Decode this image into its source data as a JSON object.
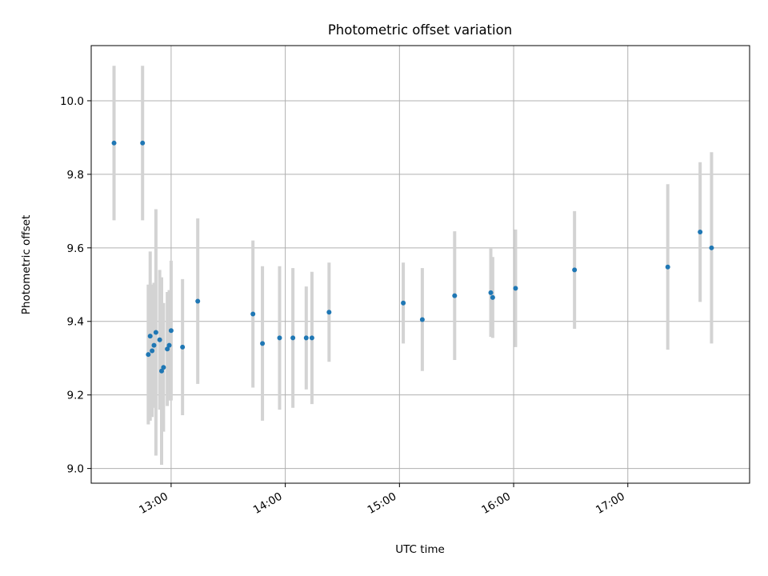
{
  "chart_data": {
    "type": "scatter",
    "title": "Photometric offset variation",
    "xlabel": "UTC time",
    "ylabel": "Photometric offset",
    "grid": true,
    "x_unit": "UTC hh:mm",
    "xlim": [
      "12:18",
      "18:04"
    ],
    "ylim": [
      8.96,
      10.15
    ],
    "xticks": [
      "13:00",
      "14:00",
      "15:00",
      "16:00",
      "17:00"
    ],
    "yticks": [
      "9.0",
      "9.2",
      "9.4",
      "9.6",
      "9.8",
      "10.0"
    ],
    "point_color": "#1f77b4",
    "errorbar_color": "#d3d3d3",
    "points": [
      {
        "x": "12:30",
        "y": 9.885,
        "err": 0.21
      },
      {
        "x": "12:45",
        "y": 9.885,
        "err": 0.21
      },
      {
        "x": "12:48",
        "y": 9.31,
        "err": 0.19
      },
      {
        "x": "12:49",
        "y": 9.36,
        "err": 0.23
      },
      {
        "x": "12:50",
        "y": 9.32,
        "err": 0.18
      },
      {
        "x": "12:51",
        "y": 9.335,
        "err": 0.17
      },
      {
        "x": "12:52",
        "y": 9.37,
        "err": 0.335
      },
      {
        "x": "12:54",
        "y": 9.35,
        "err": 0.19
      },
      {
        "x": "12:55",
        "y": 9.265,
        "err": 0.255
      },
      {
        "x": "12:56",
        "y": 9.275,
        "err": 0.175
      },
      {
        "x": "12:58",
        "y": 9.325,
        "err": 0.155
      },
      {
        "x": "12:59",
        "y": 9.335,
        "err": 0.15
      },
      {
        "x": "13:00",
        "y": 9.375,
        "err": 0.19
      },
      {
        "x": "13:06",
        "y": 9.33,
        "err": 0.185
      },
      {
        "x": "13:14",
        "y": 9.455,
        "err": 0.225
      },
      {
        "x": "13:43",
        "y": 9.42,
        "err": 0.2
      },
      {
        "x": "13:48",
        "y": 9.34,
        "err": 0.21
      },
      {
        "x": "13:57",
        "y": 9.355,
        "err": 0.195
      },
      {
        "x": "14:04",
        "y": 9.355,
        "err": 0.19
      },
      {
        "x": "14:11",
        "y": 9.355,
        "err": 0.14
      },
      {
        "x": "14:14",
        "y": 9.355,
        "err": 0.18
      },
      {
        "x": "14:23",
        "y": 9.425,
        "err": 0.135
      },
      {
        "x": "15:02",
        "y": 9.45,
        "err": 0.11
      },
      {
        "x": "15:12",
        "y": 9.405,
        "err": 0.14
      },
      {
        "x": "15:29",
        "y": 9.47,
        "err": 0.175
      },
      {
        "x": "15:48",
        "y": 9.478,
        "err": 0.12
      },
      {
        "x": "15:49",
        "y": 9.465,
        "err": 0.11
      },
      {
        "x": "16:01",
        "y": 9.49,
        "err": 0.16
      },
      {
        "x": "16:32",
        "y": 9.54,
        "err": 0.16
      },
      {
        "x": "17:21",
        "y": 9.548,
        "err": 0.225
      },
      {
        "x": "17:38",
        "y": 9.643,
        "err": 0.19
      },
      {
        "x": "17:44",
        "y": 9.6,
        "err": 0.26
      }
    ]
  }
}
